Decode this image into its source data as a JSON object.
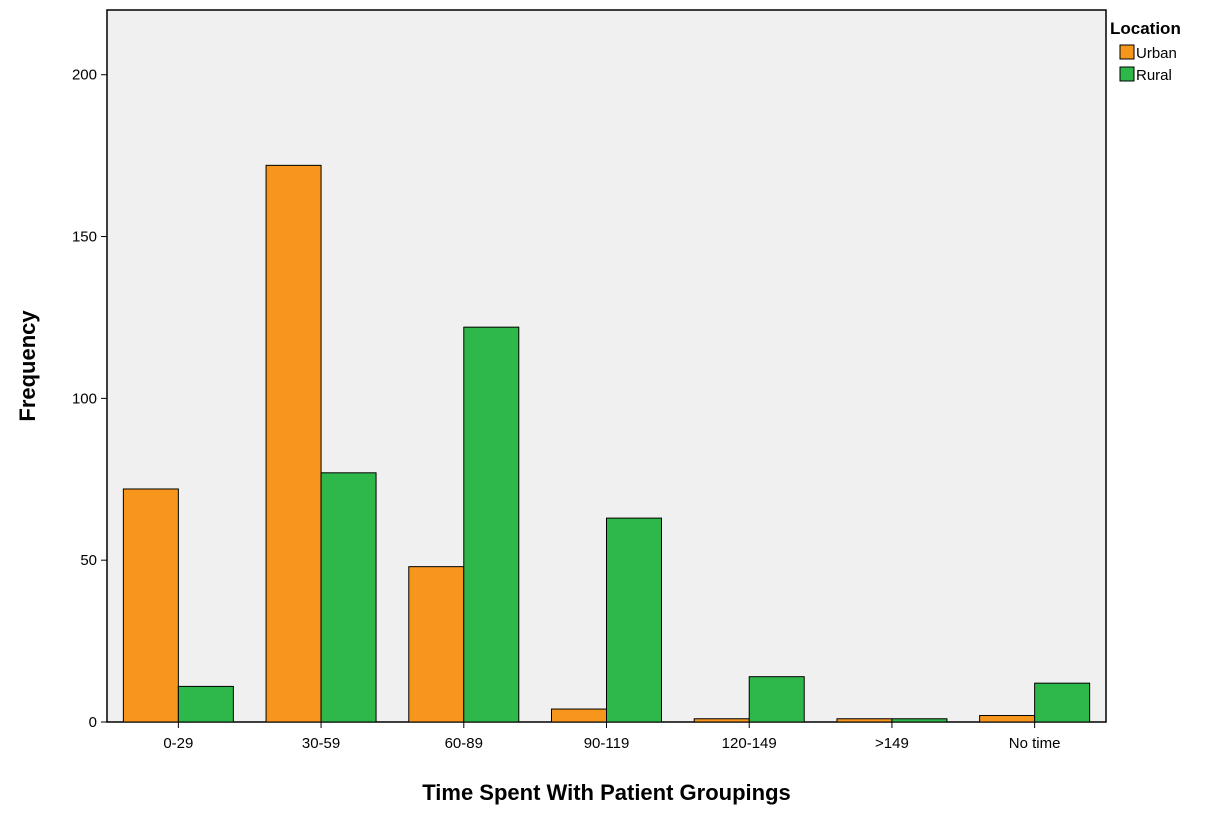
{
  "chart_data": {
    "type": "bar",
    "xlabel": "Time Spent With Patient Groupings",
    "ylabel": "Frequency",
    "categories": [
      "0-29",
      "30-59",
      "60-89",
      "90-119",
      "120-149",
      ">149",
      "No time"
    ],
    "series": [
      {
        "name": "Urban",
        "values": [
          72,
          172,
          48,
          4,
          1,
          1,
          2
        ],
        "color": "#f7961d"
      },
      {
        "name": "Rural",
        "values": [
          11,
          77,
          122,
          63,
          14,
          1,
          12
        ],
        "color": "#2fb84a"
      }
    ],
    "ylim": [
      0,
      220
    ],
    "yticks": [
      0,
      50,
      100,
      150,
      200
    ],
    "legend": {
      "title": "Location",
      "placement": "top-right"
    },
    "grid": false,
    "plot_background": "#f0f0f0"
  }
}
